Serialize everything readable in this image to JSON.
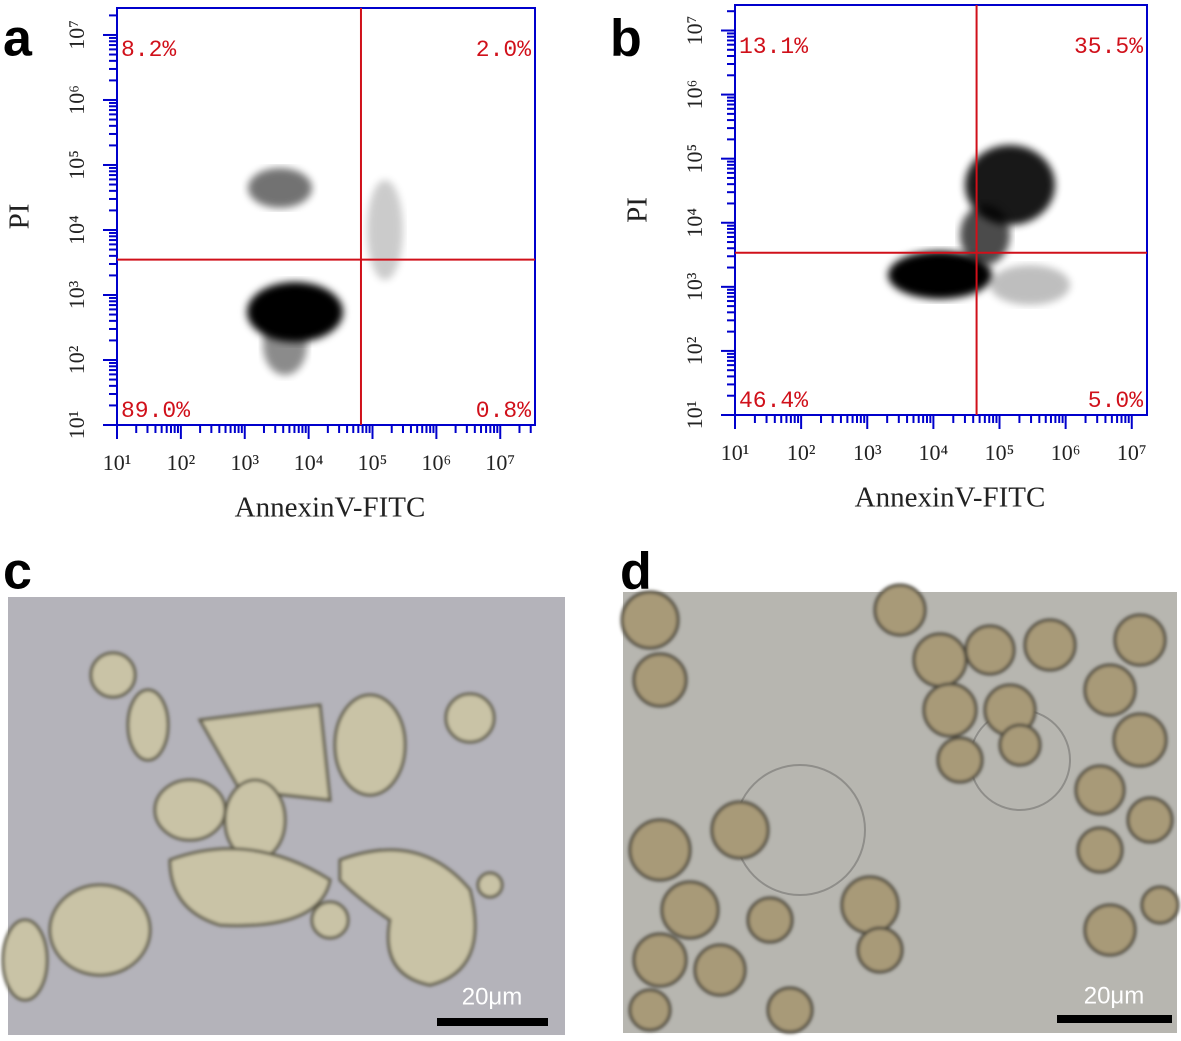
{
  "panels": [
    "a",
    "b",
    "c",
    "d"
  ],
  "chart_data": [
    {
      "type": "scatter",
      "xlabel": "AnnexinV-FITC",
      "ylabel": "PI",
      "xscale": "log",
      "yscale": "log",
      "xlim": [
        10,
        35000000
      ],
      "ylim": [
        10,
        26000000
      ],
      "xticks": [
        {
          "value": 10,
          "label": "10¹"
        },
        {
          "value": 100,
          "label": "10²"
        },
        {
          "value": 1000,
          "label": "10³"
        },
        {
          "value": 10000,
          "label": "10⁴"
        },
        {
          "value": 100000,
          "label": "10⁵"
        },
        {
          "value": 1000000,
          "label": "10⁶"
        },
        {
          "value": 10000000,
          "label": "10⁷"
        }
      ],
      "yticks": [
        {
          "value": 10,
          "label": "10¹"
        },
        {
          "value": 100,
          "label": "10²"
        },
        {
          "value": 1000,
          "label": "10³"
        },
        {
          "value": 10000,
          "label": "10⁴"
        },
        {
          "value": 100000,
          "label": "10⁵"
        },
        {
          "value": 1000000,
          "label": "10⁶"
        },
        {
          "value": 10000000,
          "label": "10⁷"
        }
      ],
      "gate": {
        "x": 66000,
        "y": 3500
      },
      "quadrant_values": [
        8.2,
        2.0,
        89.0,
        0.8
      ],
      "quadrant_labels": [
        "8.2%",
        "2.0%",
        "89.0%",
        "0.8%"
      ],
      "axis_color": "#0000cc",
      "gate_color": "#d0101a"
    },
    {
      "type": "scatter",
      "xlabel": "AnnexinV-FITC",
      "ylabel": "PI",
      "xscale": "log",
      "yscale": "log",
      "xlim": [
        10,
        17000000
      ],
      "ylim": [
        10,
        25000000
      ],
      "xticks": [
        {
          "value": 10,
          "label": "10¹"
        },
        {
          "value": 100,
          "label": "10²"
        },
        {
          "value": 1000,
          "label": "10³"
        },
        {
          "value": 10000,
          "label": "10⁴"
        },
        {
          "value": 100000,
          "label": "10⁵"
        },
        {
          "value": 1000000,
          "label": "10⁶"
        },
        {
          "value": 10000000,
          "label": "10⁷"
        }
      ],
      "yticks": [
        {
          "value": 10,
          "label": "10¹"
        },
        {
          "value": 100,
          "label": "10²"
        },
        {
          "value": 1000,
          "label": "10³"
        },
        {
          "value": 10000,
          "label": "10⁴"
        },
        {
          "value": 100000,
          "label": "10⁵"
        },
        {
          "value": 1000000,
          "label": "10⁶"
        },
        {
          "value": 10000000,
          "label": "10⁷"
        }
      ],
      "gate": {
        "x": 45000,
        "y": 3400
      },
      "quadrant_values": [
        13.1,
        35.5,
        46.4,
        5.0
      ],
      "quadrant_labels": [
        "13.1%",
        "35.5%",
        "46.4%",
        "5.0%"
      ],
      "axis_color": "#0000cc",
      "gate_color": "#d0101a"
    }
  ],
  "images": [
    {
      "scale_bar": "20μm"
    },
    {
      "scale_bar": "20μm"
    }
  ]
}
